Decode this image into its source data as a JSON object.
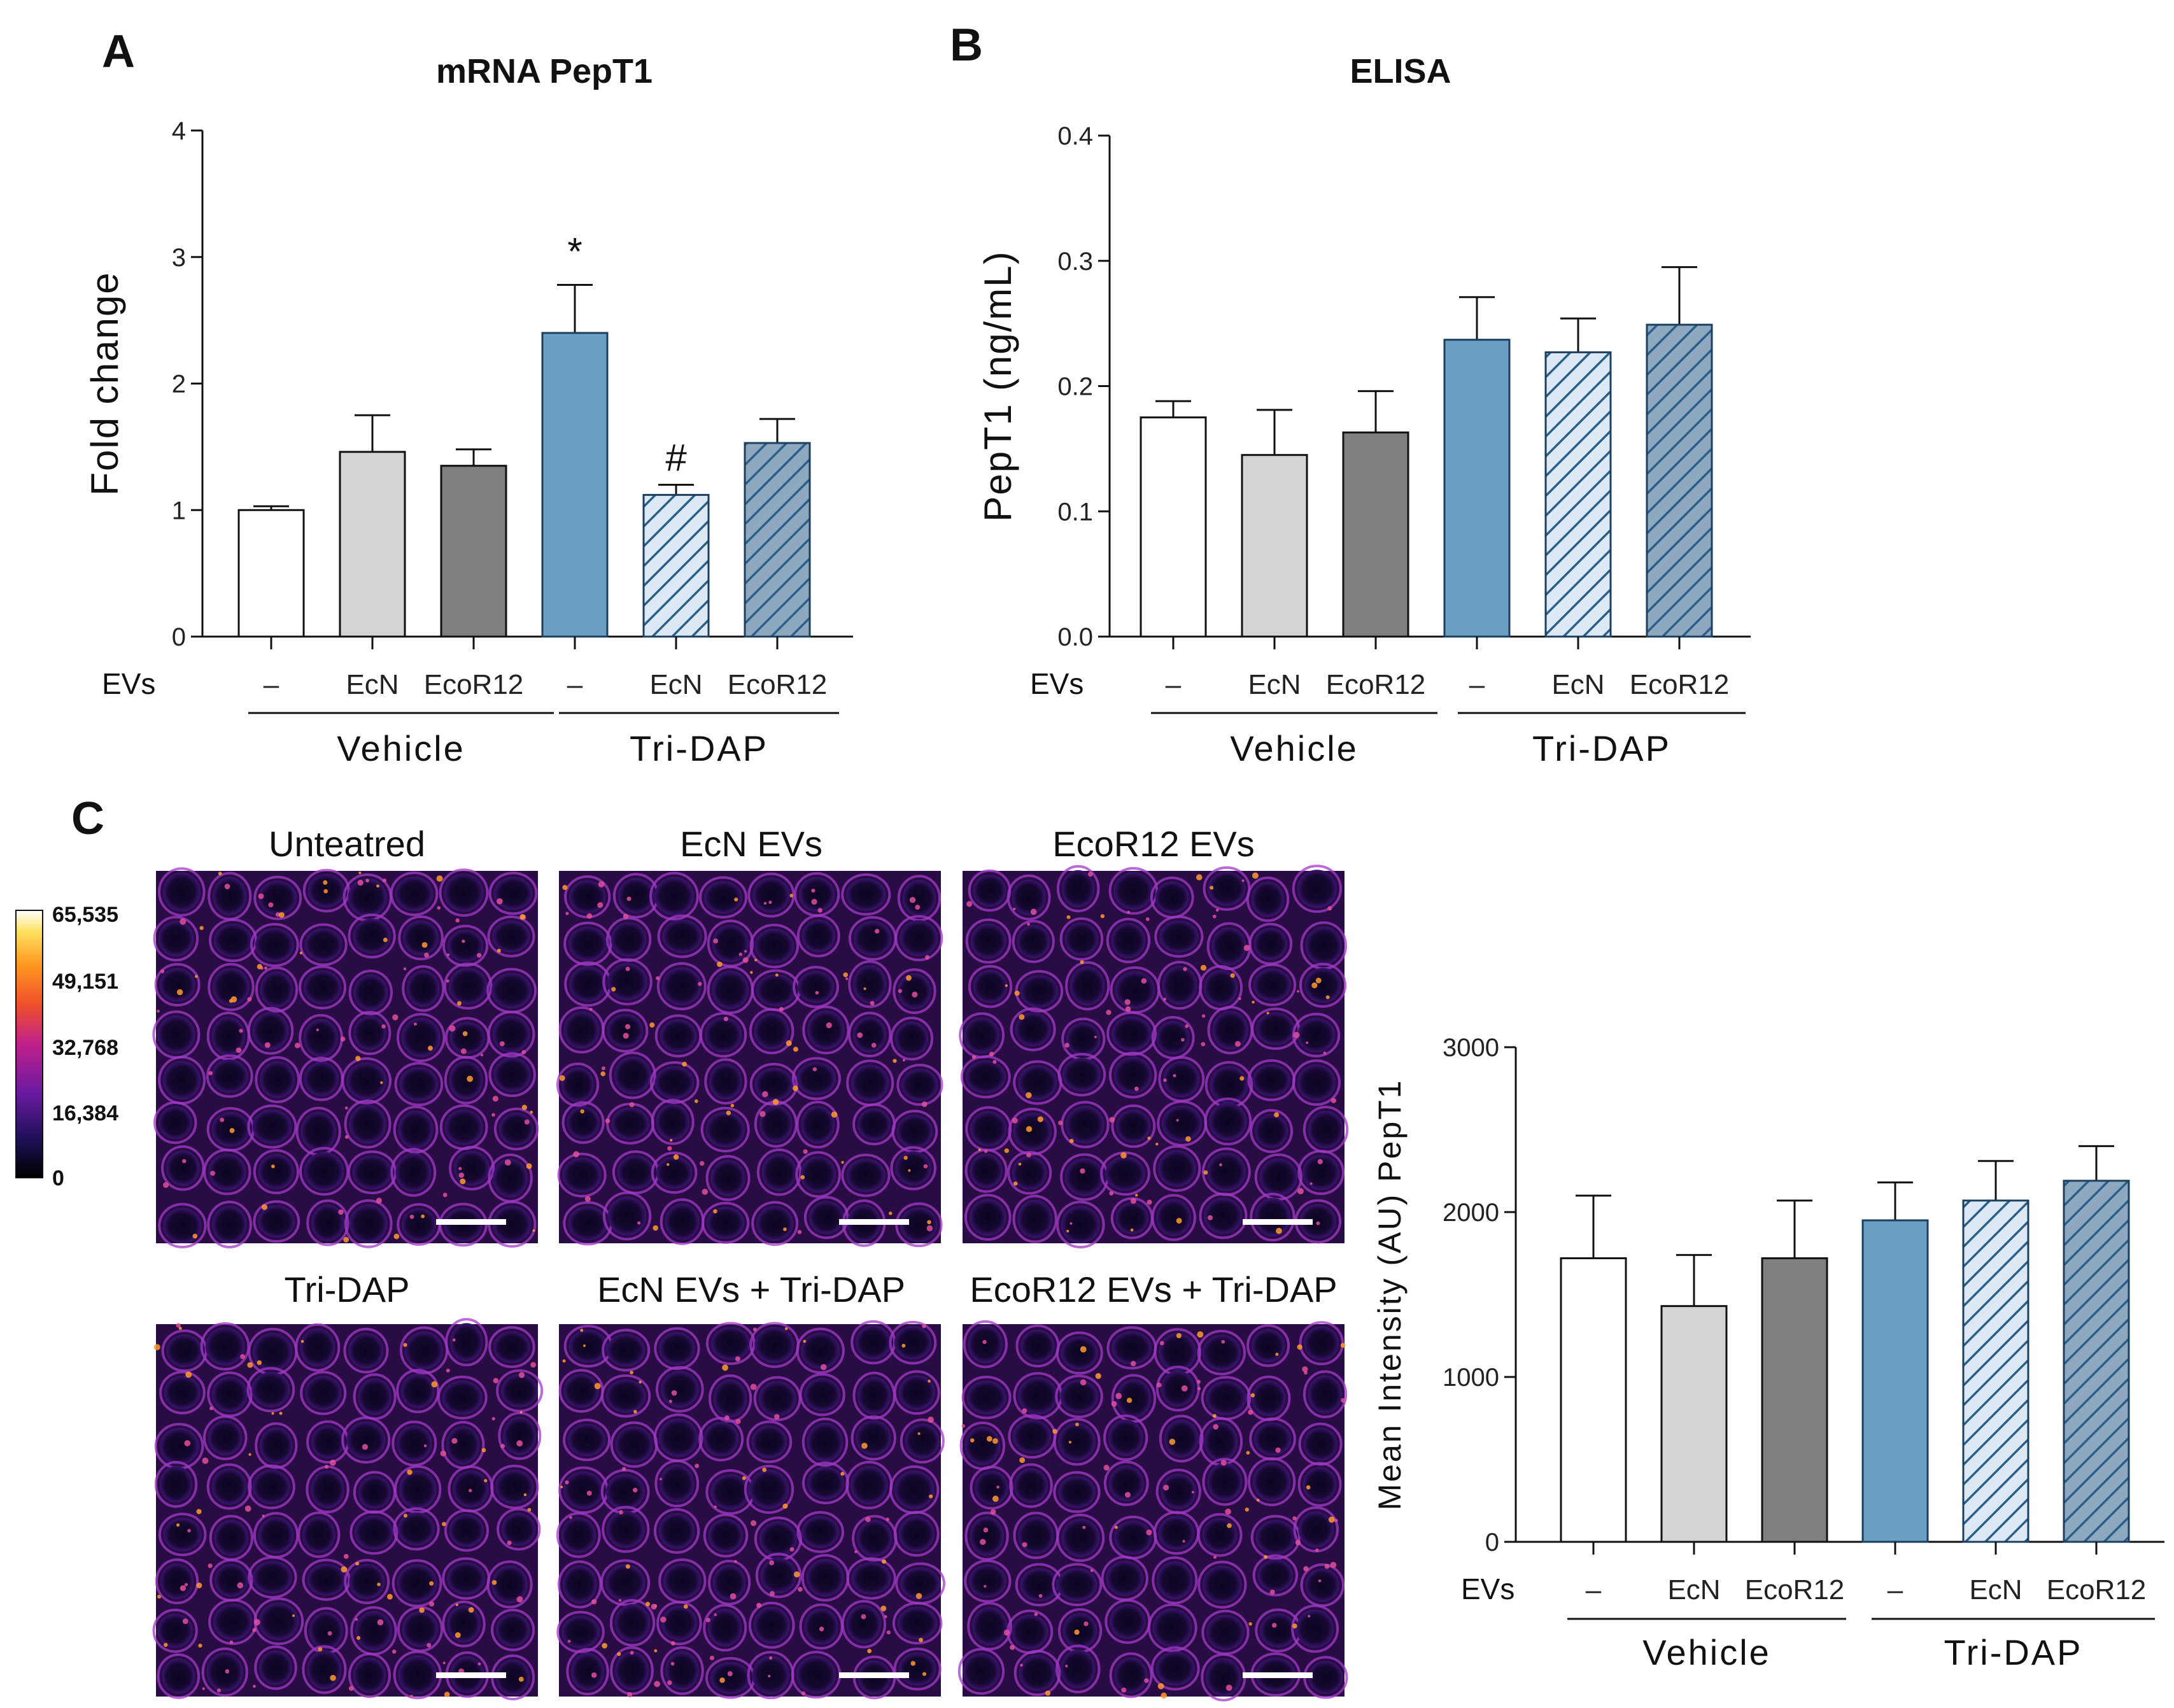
{
  "panels": {
    "a": {
      "label": "A"
    },
    "b": {
      "label": "B"
    },
    "c": {
      "label": "C"
    }
  },
  "colors": {
    "untreated": "#ffffff",
    "ecn_vehicle": "#d4d4d4",
    "ecor12_vehicle": "#7f7f7f",
    "tridap": "#6b9fc4",
    "hatch_light": "#dce9f4",
    "hatch_dark": "#8ea8bf",
    "hatch_line": "#2a5f8a",
    "image_base": "#2a0c45",
    "image_hot": "#ff9a30"
  },
  "chart_data": [
    {
      "id": "chart-a",
      "type": "bar",
      "title": "mRNA PepT1",
      "ylabel": "Fold change",
      "xlabel": "",
      "ylim": [
        0,
        4
      ],
      "yticks": [
        "0",
        "1",
        "2",
        "3",
        "4"
      ],
      "row_label": "EVs",
      "categories": [
        "–",
        "EcN",
        "EcoR12",
        "–",
        "EcN",
        "EcoR12"
      ],
      "values": [
        1.0,
        1.46,
        1.35,
        2.4,
        1.12,
        1.53
      ],
      "errors": [
        0.03,
        0.29,
        0.13,
        0.38,
        0.08,
        0.19
      ],
      "annotations": [
        "",
        "",
        "",
        "*",
        "#",
        ""
      ],
      "groups": [
        "Vehicle",
        "Tri-DAP"
      ]
    },
    {
      "id": "chart-b",
      "type": "bar",
      "title": "ELISA",
      "ylabel": "PepT1 (ng/mL)",
      "xlabel": "",
      "ylim": [
        0,
        0.4
      ],
      "yticks": [
        "0.0",
        "0.1",
        "0.2",
        "0.3",
        "0.4"
      ],
      "row_label": "EVs",
      "categories": [
        "–",
        "EcN",
        "EcoR12",
        "–",
        "EcN",
        "EcoR12"
      ],
      "values": [
        0.175,
        0.145,
        0.163,
        0.237,
        0.227,
        0.249
      ],
      "errors": [
        0.013,
        0.036,
        0.033,
        0.034,
        0.027,
        0.046
      ],
      "groups": [
        "Vehicle",
        "Tri-DAP"
      ]
    },
    {
      "id": "chart-c",
      "type": "bar",
      "title": "",
      "ylabel": "Mean Intensity (AU)  PepT1",
      "xlabel": "",
      "ylim": [
        0,
        3000
      ],
      "yticks": [
        "0",
        "1000",
        "2000",
        "3000"
      ],
      "row_label": "EVs",
      "categories": [
        "–",
        "EcN",
        "EcoR12",
        "–",
        "EcN",
        "EcoR12"
      ],
      "values": [
        1720,
        1430,
        1720,
        1950,
        2070,
        2190
      ],
      "errors": [
        380,
        310,
        350,
        230,
        240,
        210
      ],
      "groups": [
        "Vehicle",
        "Tri-DAP"
      ]
    }
  ],
  "images": {
    "titles": [
      "Unteatred",
      "EcN EVs",
      "EcoR12 EVs",
      "Tri-DAP",
      "EcN EVs + Tri-DAP",
      "EcoR12 EVs + Tri-DAP"
    ]
  },
  "colorbar": {
    "ticks": [
      "65,535",
      "49,151",
      "32,768",
      "16,384",
      "0"
    ]
  }
}
